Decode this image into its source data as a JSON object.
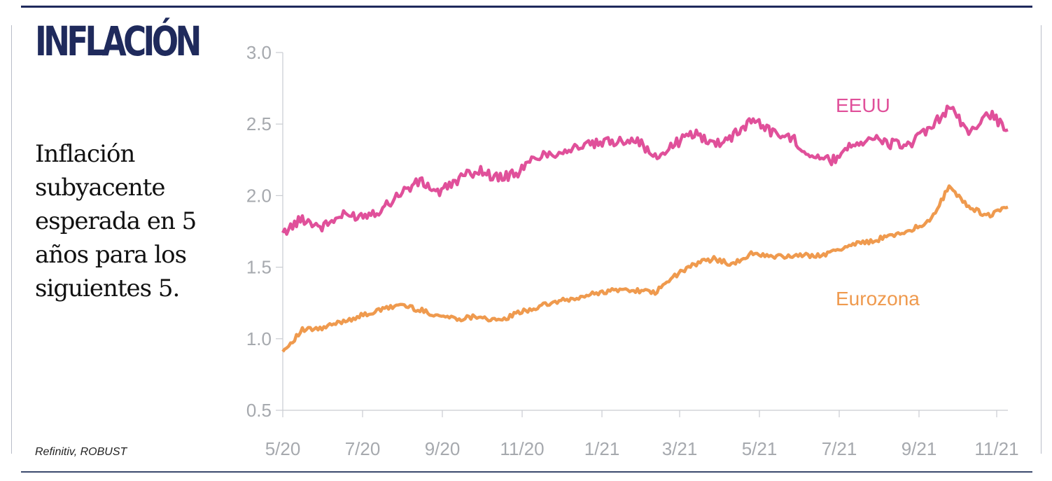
{
  "title": "INFLACIÓN",
  "subtitle": "Inflación subyacente esperada en 5 años para los siguientes 5.",
  "source": "Refinitiv, ROBUST",
  "chart_data": {
    "type": "line",
    "title": "INFLACIÓN",
    "subtitle": "Inflación subyacente esperada en 5 años para los siguientes 5.",
    "xlabel": "",
    "ylabel": "",
    "ylim": [
      0.5,
      3.0
    ],
    "yticks": [
      0.5,
      1.0,
      1.5,
      2.0,
      2.5,
      3.0
    ],
    "ytick_labels": [
      "0.5",
      "1.0",
      "1.5",
      "2.0",
      "2.5",
      "3.0"
    ],
    "xticks": [
      "5/20",
      "7/20",
      "9/20",
      "11/20",
      "1/21",
      "3/21",
      "5/21",
      "7/21",
      "9/21",
      "11/21"
    ],
    "grid": false,
    "legend": "inline labels",
    "x": [
      "5/20",
      "5/20",
      "6/20",
      "6/20",
      "7/20",
      "7/20",
      "8/20",
      "8/20",
      "9/20",
      "9/20",
      "10/20",
      "10/20",
      "11/20",
      "11/20",
      "12/20",
      "12/20",
      "1/21",
      "1/21",
      "2/21",
      "2/21",
      "3/21",
      "3/21",
      "4/21",
      "4/21",
      "5/21",
      "5/21",
      "6/21",
      "6/21",
      "7/21",
      "7/21",
      "8/21",
      "8/21",
      "9/21",
      "9/21",
      "10/21",
      "10/21",
      "11/21",
      "11/21"
    ],
    "series": [
      {
        "name": "EEUU",
        "color": "#e0509a",
        "values": [
          1.74,
          1.84,
          1.78,
          1.86,
          1.86,
          1.9,
          2.02,
          2.1,
          2.02,
          2.12,
          2.18,
          2.12,
          2.16,
          2.28,
          2.3,
          2.34,
          2.36,
          2.38,
          2.4,
          2.26,
          2.36,
          2.44,
          2.36,
          2.42,
          2.54,
          2.44,
          2.4,
          2.28,
          2.24,
          2.36,
          2.4,
          2.36,
          2.36,
          2.46,
          2.62,
          2.44,
          2.58,
          2.46
        ]
      },
      {
        "name": "Eurozona",
        "color": "#ef9a4e",
        "values": [
          0.91,
          1.06,
          1.07,
          1.12,
          1.16,
          1.2,
          1.24,
          1.2,
          1.16,
          1.14,
          1.16,
          1.12,
          1.18,
          1.22,
          1.26,
          1.28,
          1.32,
          1.34,
          1.34,
          1.32,
          1.44,
          1.52,
          1.56,
          1.52,
          1.6,
          1.57,
          1.58,
          1.58,
          1.6,
          1.66,
          1.68,
          1.72,
          1.76,
          1.82,
          2.06,
          1.92,
          1.86,
          1.92
        ]
      }
    ]
  }
}
